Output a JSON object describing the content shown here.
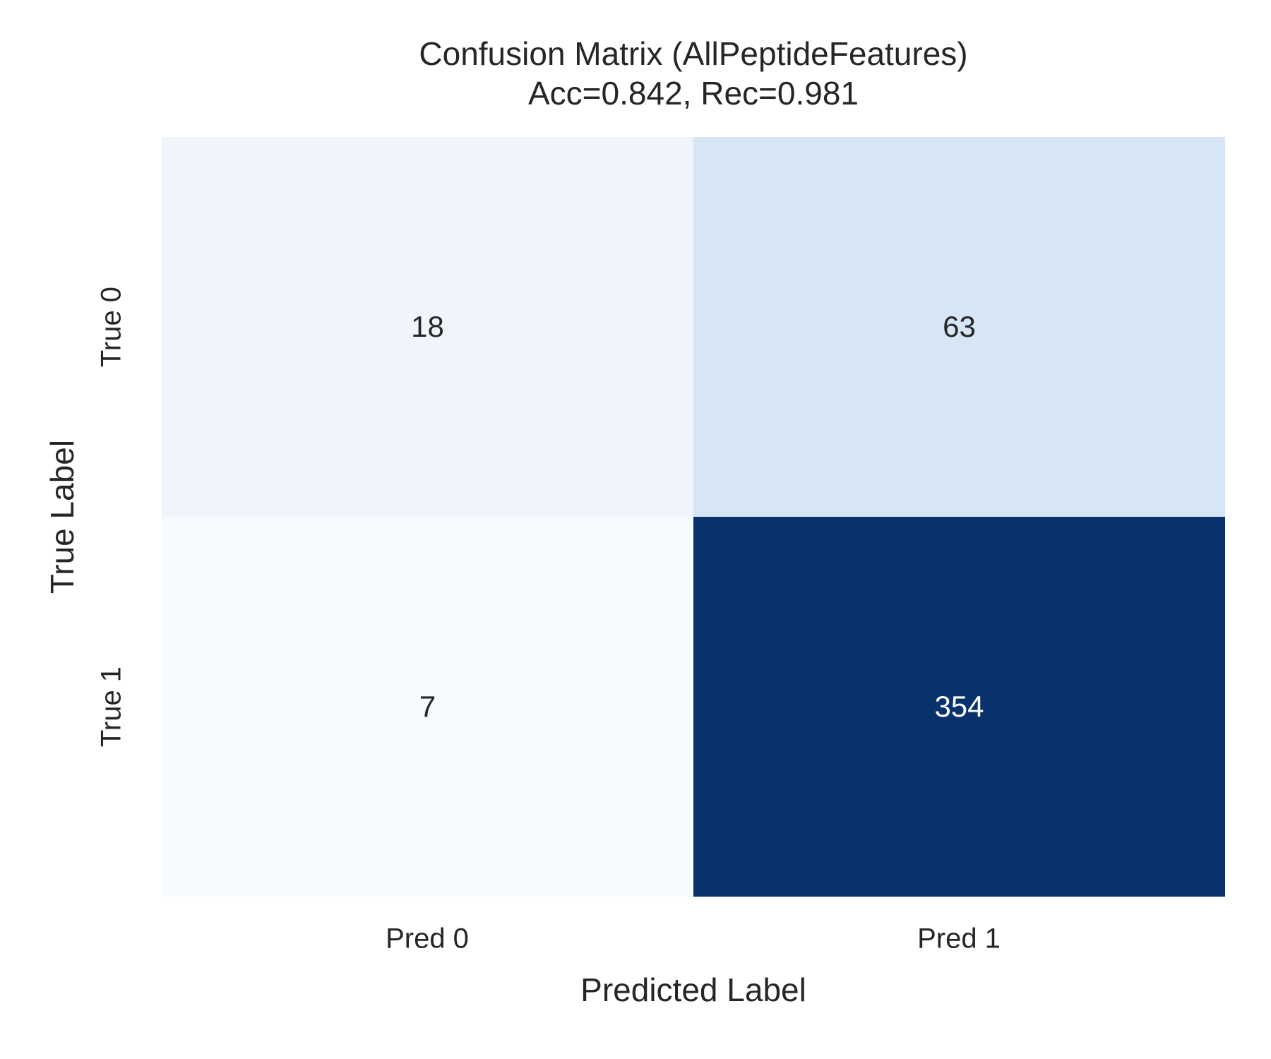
{
  "chart_data": {
    "type": "heatmap",
    "title": "Confusion Matrix (AllPeptideFeatures)",
    "subtitle": "Acc=0.842, Rec=0.981",
    "xlabel": "Predicted Label",
    "ylabel": "True Label",
    "x_ticklabels": [
      "Pred 0",
      "Pred 1"
    ],
    "y_ticklabels": [
      "True 0",
      "True 1"
    ],
    "rows": [
      [
        18,
        63
      ],
      [
        7,
        354
      ]
    ],
    "colormap": "Blues",
    "cell_colors": [
      [
        "#F0F5FC",
        "#D6E6F4"
      ],
      [
        "#F7FAFE",
        "#09316B"
      ]
    ],
    "cell_text_colors": [
      [
        "#262626",
        "#262626"
      ],
      [
        "#262626",
        "#FFFFFF"
      ]
    ],
    "background_color": "#FFFFFF",
    "grid": false,
    "legend": "none"
  }
}
